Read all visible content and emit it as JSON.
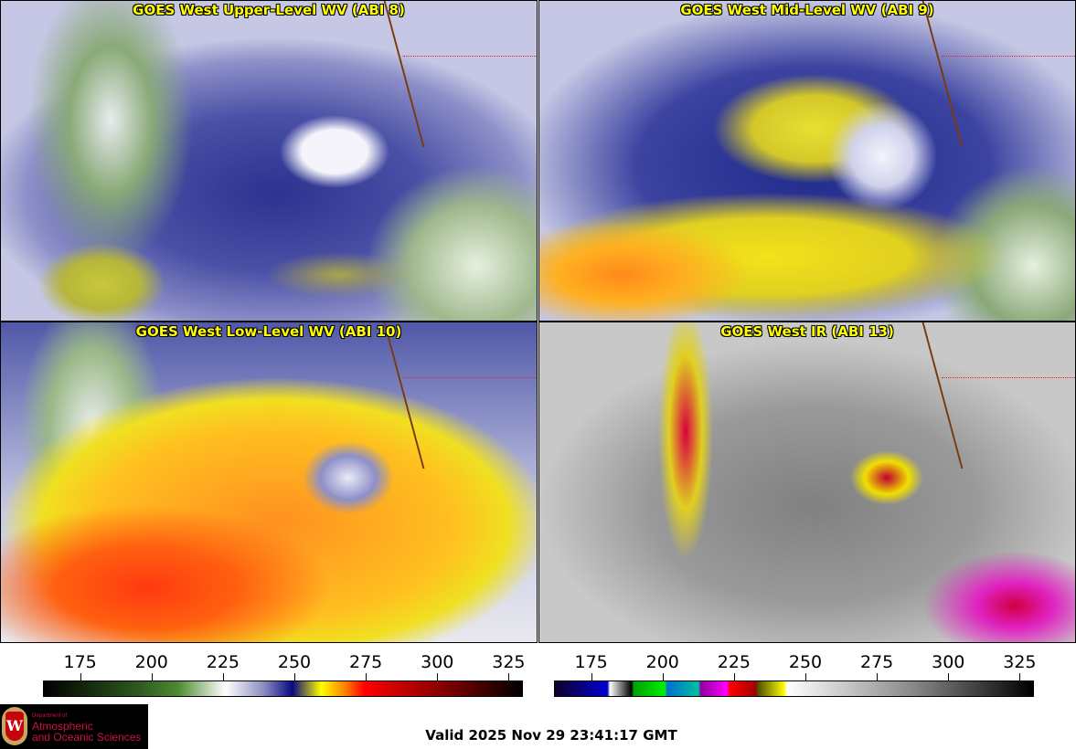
{
  "panels": [
    {
      "title": "GOES West Upper-Level WV (ABI 8)"
    },
    {
      "title": "GOES West Mid-Level WV (ABI 9)"
    },
    {
      "title": "GOES West Low-Level WV (ABI 10)"
    },
    {
      "title": "GOES West IR (ABI 13)"
    }
  ],
  "colorbars": [
    {
      "name": "water-vapor",
      "range": [
        162,
        330
      ],
      "ticks": [
        "175",
        "200",
        "225",
        "250",
        "275",
        "300",
        "325"
      ]
    },
    {
      "name": "infrared",
      "range": [
        162,
        330
      ],
      "ticks": [
        "175",
        "200",
        "225",
        "250",
        "275",
        "300",
        "325"
      ]
    }
  ],
  "logo": {
    "line1": "Department of",
    "line2": "Atmospheric",
    "line3": "and Oceanic Sciences",
    "seal_letter": "W"
  },
  "valid_time": "Valid 2025 Nov 29 23:41:17 GMT"
}
